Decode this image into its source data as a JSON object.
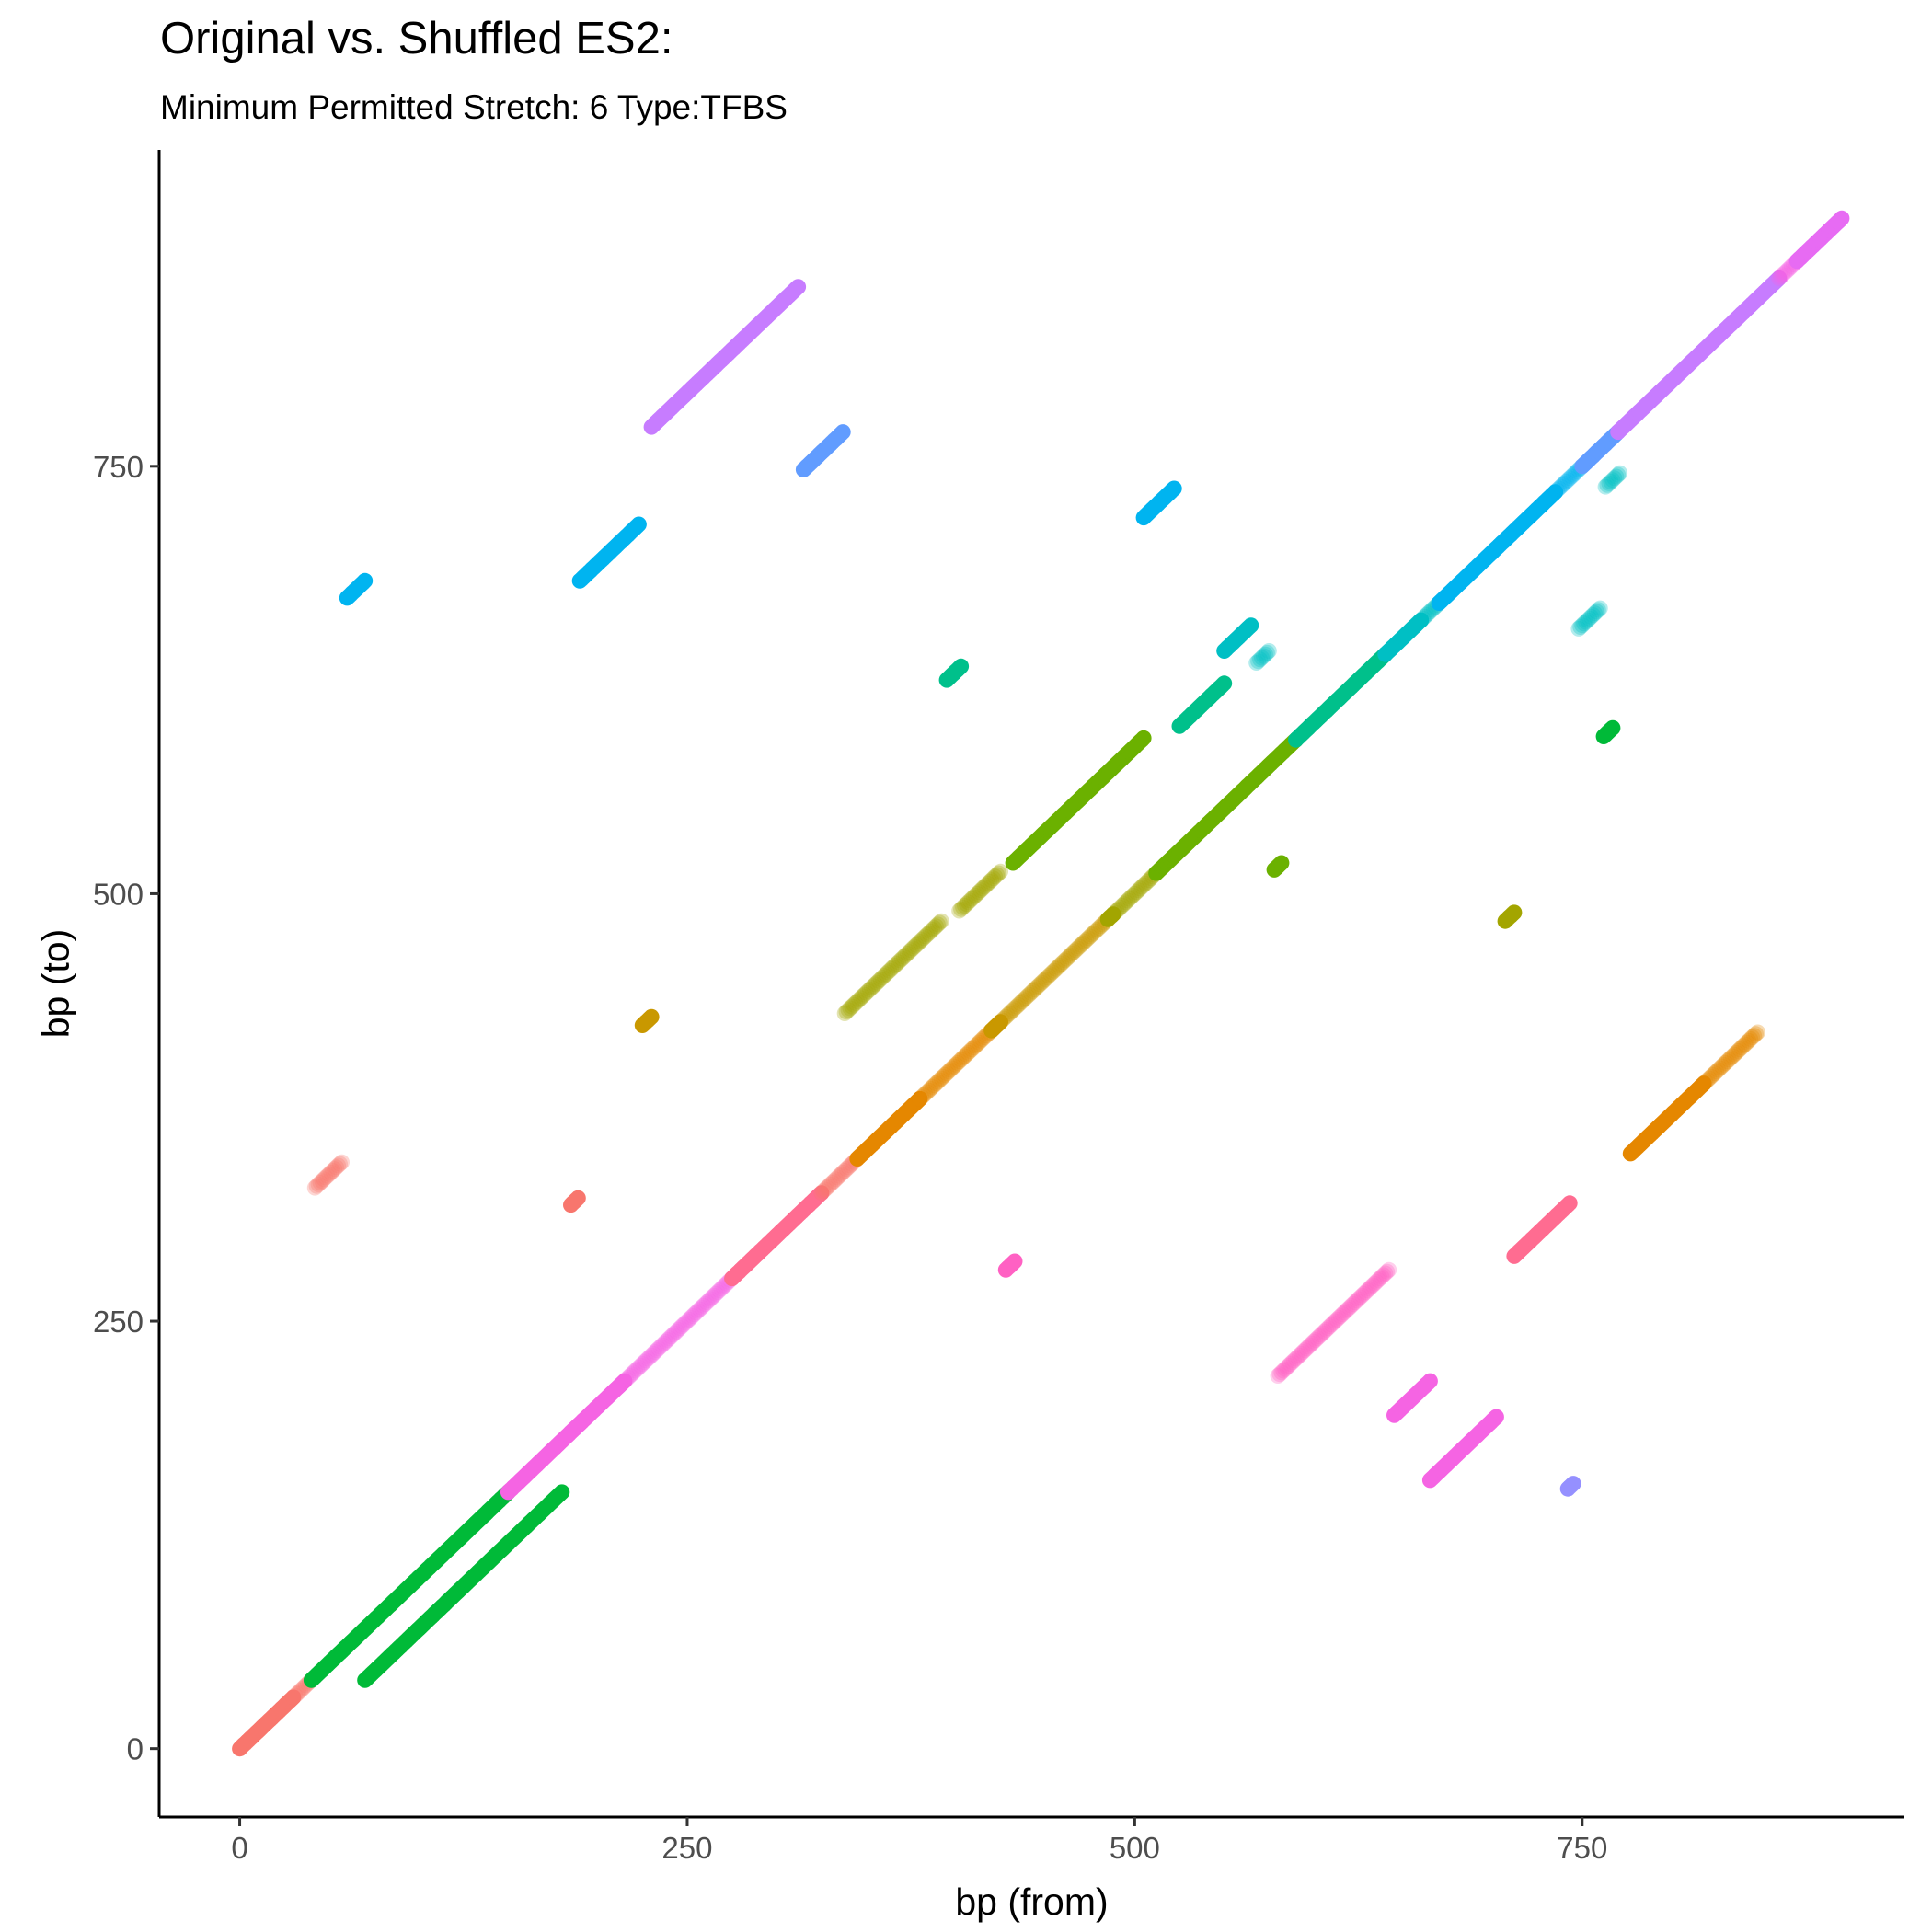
{
  "chart_data": {
    "type": "scatter",
    "title": "Original vs. Shuffled ES2:",
    "subtitle": "Minimum Permitted Stretch: 6 Type:TFBS",
    "xlabel": "bp (from)",
    "ylabel": "bp (to)",
    "xlim": [
      -45,
      930
    ],
    "ylim": [
      -40,
      935
    ],
    "x_ticks": [
      0,
      250,
      500,
      750
    ],
    "y_ticks": [
      0,
      250,
      500,
      750
    ],
    "grid": false,
    "legend": "none",
    "segments": [
      {
        "x0": 0,
        "x1": 30,
        "y0": 0,
        "y1": 30,
        "color": "#F8766D",
        "alpha": 1
      },
      {
        "x0": 30,
        "x1": 40,
        "y0": 30,
        "y1": 40,
        "color": "#F8766D",
        "alpha": 0.3
      },
      {
        "x0": 40,
        "x1": 150,
        "y0": 40,
        "y1": 150,
        "color": "#00BA38",
        "alpha": 1
      },
      {
        "x0": 70,
        "x1": 180,
        "y0": 40,
        "y1": 150,
        "color": "#00BA38",
        "alpha": 1
      },
      {
        "x0": 150,
        "x1": 215,
        "y0": 150,
        "y1": 215,
        "color": "#F564E3",
        "alpha": 1
      },
      {
        "x0": 215,
        "x1": 275,
        "y0": 215,
        "y1": 275,
        "color": "#F564E3",
        "alpha": 0.3
      },
      {
        "x0": 275,
        "x1": 325,
        "y0": 275,
        "y1": 325,
        "color": "#FF6C91",
        "alpha": 1
      },
      {
        "x0": 325,
        "x1": 345,
        "y0": 325,
        "y1": 345,
        "color": "#F8766D",
        "alpha": 0.3
      },
      {
        "x0": 345,
        "x1": 380,
        "y0": 345,
        "y1": 380,
        "color": "#E58700",
        "alpha": 1
      },
      {
        "x0": 380,
        "x1": 420,
        "y0": 380,
        "y1": 420,
        "color": "#E58700",
        "alpha": 0.3
      },
      {
        "x0": 420,
        "x1": 425,
        "y0": 420,
        "y1": 425,
        "color": "#C99800",
        "alpha": 1
      },
      {
        "x0": 425,
        "x1": 485,
        "y0": 425,
        "y1": 485,
        "color": "#C99800",
        "alpha": 0.3
      },
      {
        "x0": 485,
        "x1": 488,
        "y0": 485,
        "y1": 488,
        "color": "#A3A500",
        "alpha": 1
      },
      {
        "x0": 488,
        "x1": 512,
        "y0": 488,
        "y1": 512,
        "color": "#A3A500",
        "alpha": 0.3
      },
      {
        "x0": 512,
        "x1": 590,
        "y0": 512,
        "y1": 590,
        "color": "#6BB100",
        "alpha": 1
      },
      {
        "x0": 590,
        "x1": 640,
        "y0": 590,
        "y1": 640,
        "color": "#00C08B",
        "alpha": 1
      },
      {
        "x0": 640,
        "x1": 660,
        "y0": 640,
        "y1": 660,
        "color": "#00BFC4",
        "alpha": 1
      },
      {
        "x0": 660,
        "x1": 670,
        "y0": 660,
        "y1": 670,
        "color": "#00BFC4",
        "alpha": 0.3
      },
      {
        "x0": 670,
        "x1": 735,
        "y0": 670,
        "y1": 735,
        "color": "#00B4F0",
        "alpha": 1
      },
      {
        "x0": 735,
        "x1": 750,
        "y0": 735,
        "y1": 750,
        "color": "#00B4F0",
        "alpha": 0.3
      },
      {
        "x0": 750,
        "x1": 770,
        "y0": 750,
        "y1": 770,
        "color": "#619CFF",
        "alpha": 1
      },
      {
        "x0": 770,
        "x1": 860,
        "y0": 770,
        "y1": 860,
        "color": "#C77CFF",
        "alpha": 1
      },
      {
        "x0": 860,
        "x1": 870,
        "y0": 860,
        "y1": 870,
        "color": "#F564E3",
        "alpha": 0.3
      },
      {
        "x0": 870,
        "x1": 895,
        "y0": 870,
        "y1": 895,
        "color": "#E76BF3",
        "alpha": 1
      },
      {
        "x0": 230,
        "x1": 312,
        "y0": 773,
        "y1": 855,
        "color": "#C77CFF",
        "alpha": 1
      },
      {
        "x0": 315,
        "x1": 337,
        "y0": 748,
        "y1": 770,
        "color": "#619CFF",
        "alpha": 1
      },
      {
        "x0": 60,
        "x1": 70,
        "y0": 673,
        "y1": 683,
        "color": "#00B4F0",
        "alpha": 1
      },
      {
        "x0": 190,
        "x1": 223,
        "y0": 683,
        "y1": 716,
        "color": "#00B4F0",
        "alpha": 1
      },
      {
        "x0": 505,
        "x1": 522,
        "y0": 720,
        "y1": 737,
        "color": "#00B4F0",
        "alpha": 1
      },
      {
        "x0": 395,
        "x1": 403,
        "y0": 625,
        "y1": 633,
        "color": "#00C08B",
        "alpha": 1
      },
      {
        "x0": 525,
        "x1": 550,
        "y0": 598,
        "y1": 623,
        "color": "#00C08B",
        "alpha": 1
      },
      {
        "x0": 550,
        "x1": 565,
        "y0": 642,
        "y1": 657,
        "color": "#00BFC4",
        "alpha": 1
      },
      {
        "x0": 568,
        "x1": 575,
        "y0": 635,
        "y1": 642,
        "color": "#00BFC4",
        "alpha": 0.3
      },
      {
        "x0": 432,
        "x1": 505,
        "y0": 518,
        "y1": 591,
        "color": "#6BB100",
        "alpha": 1
      },
      {
        "x0": 338,
        "x1": 392,
        "y0": 430,
        "y1": 484,
        "color": "#A3A500",
        "alpha": 0.3
      },
      {
        "x0": 402,
        "x1": 425,
        "y0": 490,
        "y1": 513,
        "color": "#A3A500",
        "alpha": 0.3
      },
      {
        "x0": 578,
        "x1": 582,
        "y0": 514,
        "y1": 518,
        "color": "#6BB100",
        "alpha": 1
      },
      {
        "x0": 707,
        "x1": 712,
        "y0": 484,
        "y1": 489,
        "color": "#A3A500",
        "alpha": 1
      },
      {
        "x0": 762,
        "x1": 767,
        "y0": 592,
        "y1": 597,
        "color": "#00BA38",
        "alpha": 1
      },
      {
        "x0": 748,
        "x1": 760,
        "y0": 655,
        "y1": 667,
        "color": "#00BFC4",
        "alpha": 0.3
      },
      {
        "x0": 763,
        "x1": 771,
        "y0": 738,
        "y1": 746,
        "color": "#00BFC4",
        "alpha": 0.3
      },
      {
        "x0": 225,
        "x1": 230,
        "y0": 423,
        "y1": 428,
        "color": "#C99800",
        "alpha": 1
      },
      {
        "x0": 42,
        "x1": 57,
        "y0": 328,
        "y1": 343,
        "color": "#F8766D",
        "alpha": 0.3
      },
      {
        "x0": 185,
        "x1": 189,
        "y0": 318,
        "y1": 322,
        "color": "#F8766D",
        "alpha": 1
      },
      {
        "x0": 428,
        "x1": 433,
        "y0": 280,
        "y1": 285,
        "color": "#FF61C3",
        "alpha": 1
      },
      {
        "x0": 580,
        "x1": 642,
        "y0": 218,
        "y1": 280,
        "color": "#FF61C3",
        "alpha": 0.3
      },
      {
        "x0": 645,
        "x1": 665,
        "y0": 195,
        "y1": 215,
        "color": "#F564E3",
        "alpha": 1
      },
      {
        "x0": 665,
        "x1": 702,
        "y0": 157,
        "y1": 194,
        "color": "#F564E3",
        "alpha": 1
      },
      {
        "x0": 742,
        "x1": 745,
        "y0": 152,
        "y1": 155,
        "color": "#9590FF",
        "alpha": 1
      },
      {
        "x0": 712,
        "x1": 743,
        "y0": 288,
        "y1": 319,
        "color": "#FF6C91",
        "alpha": 1
      },
      {
        "x0": 777,
        "x1": 818,
        "y0": 348,
        "y1": 389,
        "color": "#E58700",
        "alpha": 1
      },
      {
        "x0": 818,
        "x1": 848,
        "y0": 389,
        "y1": 419,
        "color": "#E58700",
        "alpha": 0.3
      }
    ]
  }
}
